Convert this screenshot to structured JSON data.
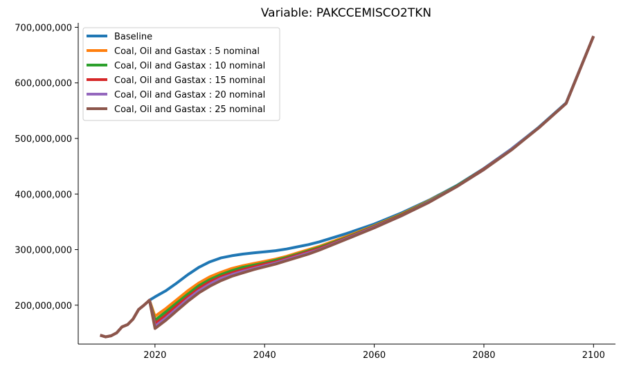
{
  "chart_data": {
    "type": "line",
    "title": "Variable: PAKCCEMISCO2TKN",
    "xlabel": "",
    "ylabel": "",
    "xlim": [
      2006,
      2104
    ],
    "ylim": [
      130000000,
      708000000
    ],
    "x_ticks": [
      {
        "value": 2020,
        "label": "2020"
      },
      {
        "value": 2040,
        "label": "2040"
      },
      {
        "value": 2060,
        "label": "2060"
      },
      {
        "value": 2080,
        "label": "2080"
      },
      {
        "value": 2100,
        "label": "2100"
      }
    ],
    "y_ticks": [
      {
        "value": 200000000,
        "label": "200,000,000"
      },
      {
        "value": 300000000,
        "label": "300,000,000"
      },
      {
        "value": 400000000,
        "label": "400,000,000"
      },
      {
        "value": 500000000,
        "label": "500,000,000"
      },
      {
        "value": 600000000,
        "label": "600,000,000"
      },
      {
        "value": 700000000,
        "label": "700,000,000"
      }
    ],
    "grid": false,
    "legend_position": "top-left",
    "history": {
      "x": [
        2010,
        2011,
        2012,
        2013,
        2014,
        2015,
        2016,
        2017,
        2018,
        2019
      ],
      "y": [
        146000000,
        143000000,
        145000000,
        150000000,
        161000000,
        165000000,
        175000000,
        192000000,
        200000000,
        209000000
      ]
    },
    "series": [
      {
        "name": "Baseline",
        "color": "#1f77b4",
        "x": [
          2019,
          2020,
          2022,
          2024,
          2026,
          2028,
          2030,
          2032,
          2034,
          2036,
          2038,
          2040,
          2042,
          2044,
          2046,
          2048,
          2050,
          2055,
          2060,
          2065,
          2070,
          2075,
          2080,
          2085,
          2090,
          2095,
          2100
        ],
        "y": [
          209000000,
          215000000,
          226000000,
          240000000,
          255000000,
          268000000,
          278000000,
          285000000,
          289000000,
          292000000,
          294000000,
          296000000,
          298000000,
          301000000,
          305000000,
          309000000,
          314000000,
          329000000,
          346000000,
          366000000,
          389000000,
          415000000,
          446000000,
          481000000,
          520000000,
          564000000,
          684000000
        ]
      },
      {
        "name": "Coal, Oil and Gastax : 5 nominal",
        "color": "#ff7f0e",
        "x": [
          2019,
          2020,
          2022,
          2024,
          2026,
          2028,
          2030,
          2032,
          2034,
          2036,
          2038,
          2040,
          2042,
          2044,
          2046,
          2048,
          2050,
          2055,
          2060,
          2065,
          2070,
          2075,
          2080,
          2085,
          2090,
          2095,
          2100
        ],
        "y": [
          209000000,
          180000000,
          194000000,
          210000000,
          226000000,
          240000000,
          251000000,
          259000000,
          266000000,
          271000000,
          275000000,
          279000000,
          283000000,
          288000000,
          294000000,
          300000000,
          306000000,
          324000000,
          343000000,
          364000000,
          388000000,
          414000000,
          445000000,
          480000000,
          519000000,
          563000000,
          684000000
        ]
      },
      {
        "name": "Coal, Oil and Gastax : 10 nominal",
        "color": "#2ca02c",
        "x": [
          2019,
          2020,
          2022,
          2024,
          2026,
          2028,
          2030,
          2032,
          2034,
          2036,
          2038,
          2040,
          2042,
          2044,
          2046,
          2048,
          2050,
          2055,
          2060,
          2065,
          2070,
          2075,
          2080,
          2085,
          2090,
          2095,
          2100
        ],
        "y": [
          209000000,
          173000000,
          188000000,
          204000000,
          220000000,
          235000000,
          246000000,
          255000000,
          262000000,
          268000000,
          272000000,
          276000000,
          281000000,
          286000000,
          292000000,
          298000000,
          304000000,
          322000000,
          342000000,
          363000000,
          387000000,
          414000000,
          445000000,
          480000000,
          519000000,
          563000000,
          684000000
        ]
      },
      {
        "name": "Coal, Oil and Gastax : 15 nominal",
        "color": "#d62728",
        "x": [
          2019,
          2020,
          2022,
          2024,
          2026,
          2028,
          2030,
          2032,
          2034,
          2036,
          2038,
          2040,
          2042,
          2044,
          2046,
          2048,
          2050,
          2055,
          2060,
          2065,
          2070,
          2075,
          2080,
          2085,
          2090,
          2095,
          2100
        ],
        "y": [
          209000000,
          167000000,
          182000000,
          199000000,
          215000000,
          230000000,
          242000000,
          251000000,
          258000000,
          264000000,
          269000000,
          274000000,
          278000000,
          284000000,
          290000000,
          296000000,
          302000000,
          321000000,
          341000000,
          362000000,
          386000000,
          413000000,
          445000000,
          480000000,
          519000000,
          563000000,
          684000000
        ]
      },
      {
        "name": "Coal, Oil and Gastax : 20 nominal",
        "color": "#9467bd",
        "x": [
          2019,
          2020,
          2022,
          2024,
          2026,
          2028,
          2030,
          2032,
          2034,
          2036,
          2038,
          2040,
          2042,
          2044,
          2046,
          2048,
          2050,
          2055,
          2060,
          2065,
          2070,
          2075,
          2080,
          2085,
          2090,
          2095,
          2100
        ],
        "y": [
          209000000,
          162000000,
          177000000,
          194000000,
          211000000,
          226000000,
          238000000,
          248000000,
          255000000,
          261000000,
          266000000,
          271000000,
          276000000,
          282000000,
          288000000,
          294000000,
          300000000,
          320000000,
          340000000,
          361000000,
          386000000,
          413000000,
          444000000,
          480000000,
          519000000,
          563000000,
          684000000
        ]
      },
      {
        "name": "Coal, Oil and Gastax : 25 nominal",
        "color": "#8c564b",
        "x": [
          2019,
          2020,
          2022,
          2024,
          2026,
          2028,
          2030,
          2032,
          2034,
          2036,
          2038,
          2040,
          2042,
          2044,
          2046,
          2048,
          2050,
          2055,
          2060,
          2065,
          2070,
          2075,
          2080,
          2085,
          2090,
          2095,
          2100
        ],
        "y": [
          209000000,
          158000000,
          173000000,
          190000000,
          207000000,
          222000000,
          234000000,
          244000000,
          252000000,
          258000000,
          264000000,
          269000000,
          274000000,
          280000000,
          286000000,
          292000000,
          299000000,
          319000000,
          339000000,
          361000000,
          385000000,
          413000000,
          444000000,
          479000000,
          519000000,
          563000000,
          684000000
        ]
      }
    ]
  }
}
